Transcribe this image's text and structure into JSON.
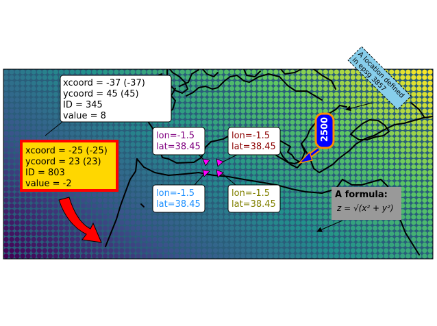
{
  "map": {
    "colormap": "viridis",
    "grid_rows": 34,
    "grid_cols": 78
  },
  "annotations": {
    "white_box": {
      "lines": [
        "xcoord = -37 (-37)",
        "ycoord = 45 (45)",
        "ID = 345",
        "value = 8"
      ]
    },
    "yellow_box": {
      "lines": [
        "xcoord = -25 (-25)",
        "ycoord = 23 (23)",
        "ID = 803",
        "value = -2"
      ],
      "fill": "#ffd700",
      "border": "#ff0000"
    },
    "lonlat": [
      {
        "lines": [
          "lon=-1.5",
          "lat=38.45"
        ],
        "color": "#800080"
      },
      {
        "lines": [
          "lon=-1.5",
          "lat=38.45"
        ],
        "color": "#8b0000"
      },
      {
        "lines": [
          "lon=-1.5",
          "lat=38.45"
        ],
        "color": "#1e90ff"
      },
      {
        "lines": [
          "lon=-1.5",
          "lat=38.45"
        ],
        "color": "#808000"
      }
    ],
    "badge": {
      "text": "2500",
      "fill": "#0000ff",
      "border": "#ff8c00"
    },
    "epsg": {
      "lines": [
        "A location defined",
        "in epsg 3857"
      ],
      "fill": "#87ceeb"
    },
    "formula": {
      "title": "A formula:",
      "expr": "z = √(x² + y²)",
      "fill": "#999999"
    }
  },
  "colors": {
    "marker": "#ff00ff",
    "coastline": "#000000",
    "big_arrow": "#ff0000"
  }
}
